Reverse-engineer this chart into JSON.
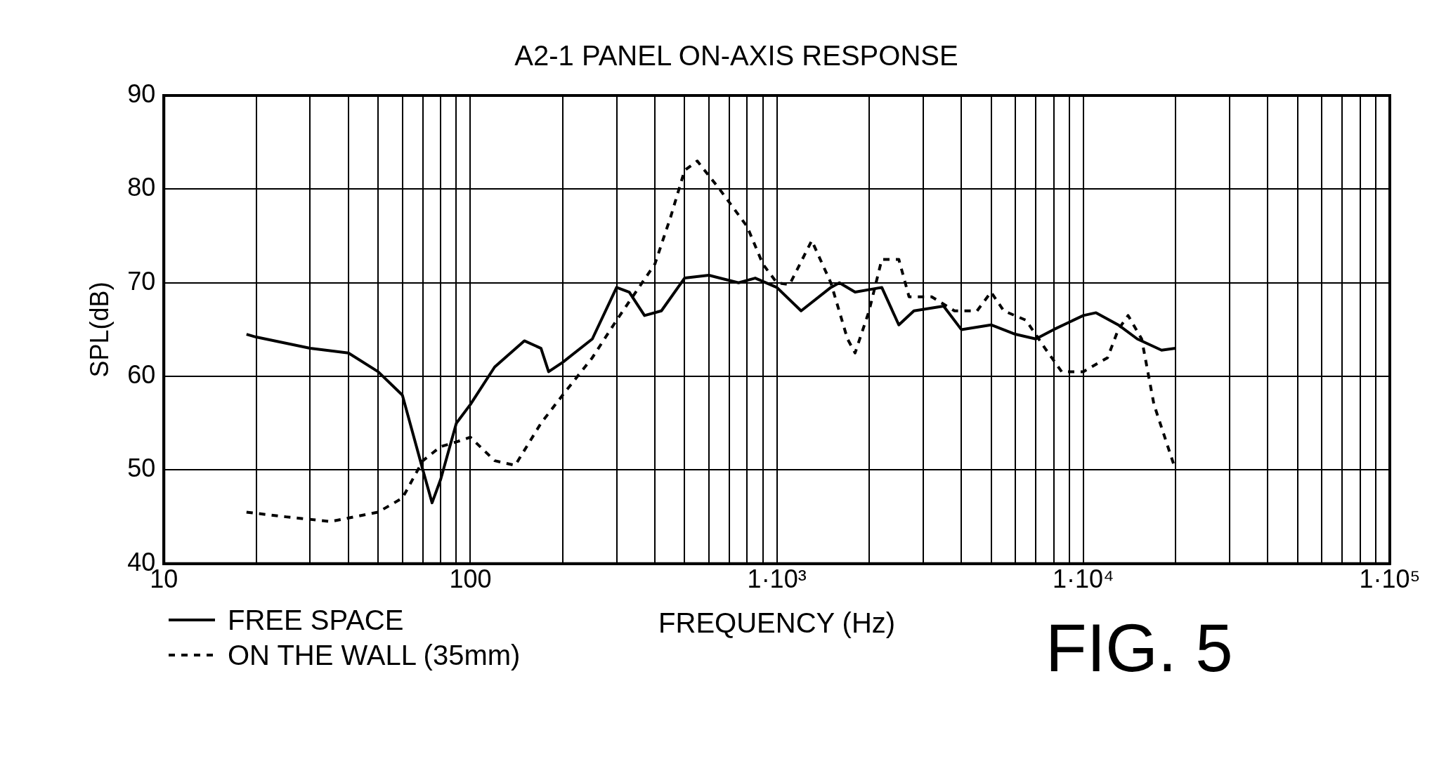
{
  "chart_data": {
    "type": "line",
    "title": "A2-1 PANEL ON-AXIS RESPONSE",
    "xlabel": "FREQUENCY (Hz)",
    "ylabel": "SPL(dB)",
    "log": "x",
    "grid": true,
    "legend": "bottom left",
    "annotations": [
      "FIG. 5"
    ],
    "xlim": [
      10,
      100000
    ],
    "xticks": [
      {
        "value": 10,
        "label": "10"
      },
      {
        "value": 20,
        "label": null
      },
      {
        "value": 30,
        "label": null
      },
      {
        "value": 40,
        "label": null
      },
      {
        "value": 50,
        "label": null
      },
      {
        "value": 60,
        "label": null
      },
      {
        "value": 70,
        "label": null
      },
      {
        "value": 80,
        "label": null
      },
      {
        "value": 90,
        "label": null
      },
      {
        "value": 100,
        "label": "100"
      },
      {
        "value": 200,
        "label": null
      },
      {
        "value": 300,
        "label": null
      },
      {
        "value": 400,
        "label": null
      },
      {
        "value": 500,
        "label": null
      },
      {
        "value": 600,
        "label": null
      },
      {
        "value": 700,
        "label": null
      },
      {
        "value": 800,
        "label": null
      },
      {
        "value": 900,
        "label": null
      },
      {
        "value": 1000,
        "label": "1·10³"
      },
      {
        "value": 2000,
        "label": null
      },
      {
        "value": 3000,
        "label": null
      },
      {
        "value": 4000,
        "label": null
      },
      {
        "value": 5000,
        "label": null
      },
      {
        "value": 6000,
        "label": null
      },
      {
        "value": 7000,
        "label": null
      },
      {
        "value": 8000,
        "label": null
      },
      {
        "value": 9000,
        "label": null
      },
      {
        "value": 10000,
        "label": "1·10⁴"
      },
      {
        "value": 20000,
        "label": null
      },
      {
        "value": 30000,
        "label": null
      },
      {
        "value": 40000,
        "label": null
      },
      {
        "value": 50000,
        "label": null
      },
      {
        "value": 60000,
        "label": null
      },
      {
        "value": 70000,
        "label": null
      },
      {
        "value": 80000,
        "label": null
      },
      {
        "value": 90000,
        "label": null
      },
      {
        "value": 100000,
        "label": "1·10⁵"
      }
    ],
    "ylim": [
      40,
      90
    ],
    "yticks": [
      40,
      50,
      60,
      70,
      80,
      90
    ],
    "series": [
      {
        "name": "FREE SPACE",
        "color": "#000000",
        "line_style": "solid",
        "x": [
          18.6,
          20,
          30,
          40,
          50,
          60,
          70,
          75,
          80,
          90,
          100,
          120,
          150,
          170,
          180,
          200,
          250,
          300,
          330,
          370,
          420,
          500,
          600,
          750,
          850,
          1000,
          1200,
          1500,
          1600,
          1800,
          2200,
          2500,
          2800,
          3500,
          4000,
          5000,
          6000,
          7000,
          8000,
          10000,
          11000,
          13000,
          15000,
          18000,
          20000
        ],
        "values": [
          64.5,
          64.2,
          63,
          62.5,
          60.5,
          58,
          50,
          46.5,
          49,
          55,
          57,
          61,
          63.8,
          63,
          60.5,
          61.5,
          64,
          69.5,
          69,
          66.5,
          67,
          70.5,
          70.8,
          70,
          70.5,
          69.5,
          67,
          69.5,
          70,
          69,
          69.5,
          65.5,
          67,
          67.5,
          65,
          65.5,
          64.5,
          64,
          65,
          66.5,
          66.8,
          65.5,
          64,
          62.8,
          63
        ]
      },
      {
        "name": "ON THE WALL (35mm)",
        "color": "#000000",
        "line_style": "dashed",
        "x": [
          18.6,
          25,
          35,
          50,
          60,
          70,
          80,
          90,
          100,
          120,
          140,
          170,
          200,
          250,
          300,
          400,
          450,
          500,
          550,
          650,
          800,
          900,
          1000,
          1100,
          1300,
          1500,
          1700,
          1800,
          2000,
          2200,
          2500,
          2700,
          3200,
          3800,
          4500,
          5000,
          5500,
          6500,
          7500,
          8500,
          10000,
          12000,
          13000,
          14000,
          15500,
          17000,
          20000
        ],
        "values": [
          45.5,
          45,
          44.5,
          45.5,
          47,
          51,
          52.5,
          53,
          53.5,
          51,
          50.5,
          55,
          58,
          62,
          66,
          72,
          77,
          82,
          83,
          80,
          76,
          72,
          70,
          69.8,
          74.5,
          70,
          64,
          62.5,
          67,
          72.5,
          72.5,
          68.5,
          68.5,
          67,
          67,
          69,
          67,
          66,
          63,
          60.5,
          60.5,
          62,
          65,
          66.5,
          64,
          57,
          50
        ]
      }
    ]
  }
}
